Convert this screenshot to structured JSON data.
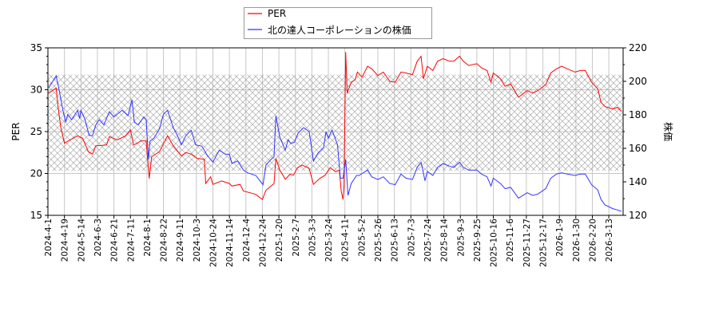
{
  "chart_data": {
    "type": "line",
    "ylabel_left": "PER",
    "ylabel_right": "株価",
    "ylim_left": [
      15,
      35
    ],
    "ylim_right": [
      120,
      220
    ],
    "yticks_left": [
      15,
      20,
      25,
      30,
      35
    ],
    "yticks_right": [
      120,
      140,
      160,
      180,
      200,
      220
    ],
    "grid": true,
    "legend_position": "top-center",
    "band_left": [
      20.3,
      31.8
    ],
    "xticks": [
      "2024-4-1",
      "2024-4-19",
      "2024-5-14",
      "2024-6-3",
      "2024-6-21",
      "2024-7-11",
      "2024-8-1",
      "2024-8-22",
      "2024-9-11",
      "2024-10-3",
      "2024-10-24",
      "2024-11-14",
      "2024-12-4",
      "2024-12-24",
      "2025-1-20",
      "2025-2-7",
      "2025-3-3",
      "2025-3-24",
      "2025-4-11",
      "2025-5-2",
      "2025-5-26",
      "2025-6-13",
      "2025-7-3",
      "2025-7-24",
      "2025-8-14",
      "2025-9-3",
      "2025-9-25",
      "2025-10-16",
      "2025-11-6",
      "2025-11-27",
      "2025-12-17",
      "2026-1-9",
      "2026-1-30",
      "2026-2-20",
      "2026-3-13"
    ],
    "series": [
      {
        "name": "PER",
        "axis": "left",
        "color": "#ff0000",
        "points": [
          [
            "2024-04-02",
            29.6
          ],
          [
            "2024-04-10",
            30.2
          ],
          [
            "2024-04-12",
            28.0
          ],
          [
            "2024-04-15",
            25.5
          ],
          [
            "2024-04-19",
            23.6
          ],
          [
            "2024-04-27",
            24.0
          ],
          [
            "2024-05-09",
            24.5
          ],
          [
            "2024-05-16",
            24.2
          ],
          [
            "2024-05-23",
            22.6
          ],
          [
            "2024-05-28",
            22.3
          ],
          [
            "2024-06-01",
            23.3
          ],
          [
            "2024-06-13",
            23.4
          ],
          [
            "2024-06-16",
            24.4
          ],
          [
            "2024-06-25",
            24.0
          ],
          [
            "2024-07-05",
            24.5
          ],
          [
            "2024-07-11",
            25.2
          ],
          [
            "2024-07-15",
            23.4
          ],
          [
            "2024-07-25",
            23.9
          ],
          [
            "2024-07-31",
            23.9
          ],
          [
            "2024-08-04",
            19.4
          ],
          [
            "2024-08-07",
            22.0
          ],
          [
            "2024-08-17",
            22.6
          ],
          [
            "2024-08-27",
            24.5
          ],
          [
            "2024-09-03",
            23.3
          ],
          [
            "2024-09-13",
            22.1
          ],
          [
            "2024-09-19",
            22.5
          ],
          [
            "2024-09-26",
            22.3
          ],
          [
            "2024-10-04",
            21.8
          ],
          [
            "2024-10-13",
            21.7
          ],
          [
            "2024-10-15",
            18.8
          ],
          [
            "2024-10-21",
            19.6
          ],
          [
            "2024-10-24",
            18.7
          ],
          [
            "2024-11-04",
            19.1
          ],
          [
            "2024-11-14",
            18.8
          ],
          [
            "2024-11-17",
            18.5
          ],
          [
            "2024-11-27",
            18.7
          ],
          [
            "2024-12-01",
            17.9
          ],
          [
            "2024-12-09",
            17.7
          ],
          [
            "2024-12-16",
            17.5
          ],
          [
            "2024-12-24",
            16.9
          ],
          [
            "2024-12-30",
            18.0
          ],
          [
            "2025-01-12",
            18.8
          ],
          [
            "2025-01-15",
            21.8
          ],
          [
            "2025-01-21",
            20.4
          ],
          [
            "2025-01-27",
            19.3
          ],
          [
            "2025-02-01",
            19.9
          ],
          [
            "2025-02-05",
            19.8
          ],
          [
            "2025-02-10",
            20.7
          ],
          [
            "2025-02-17",
            21.0
          ],
          [
            "2025-02-27",
            20.6
          ],
          [
            "2025-03-05",
            18.7
          ],
          [
            "2025-03-13",
            19.4
          ],
          [
            "2025-03-20",
            19.8
          ],
          [
            "2025-03-26",
            20.7
          ],
          [
            "2025-04-01",
            20.2
          ],
          [
            "2025-04-05",
            20.4
          ],
          [
            "2025-04-07",
            17.9
          ],
          [
            "2025-04-09",
            16.9
          ],
          [
            "2025-04-10",
            18.5
          ],
          [
            "2025-04-12",
            34.5
          ],
          [
            "2025-04-14",
            29.6
          ],
          [
            "2025-04-19",
            30.9
          ],
          [
            "2025-04-24",
            31.2
          ],
          [
            "2025-04-27",
            32.1
          ],
          [
            "2025-05-03",
            31.5
          ],
          [
            "2025-05-11",
            32.8
          ],
          [
            "2025-05-17",
            32.5
          ],
          [
            "2025-05-26",
            31.7
          ],
          [
            "2025-06-01",
            32.1
          ],
          [
            "2025-06-08",
            31.0
          ],
          [
            "2025-06-14",
            30.9
          ],
          [
            "2025-06-21",
            32.1
          ],
          [
            "2025-06-27",
            32.0
          ],
          [
            "2025-07-05",
            31.8
          ],
          [
            "2025-07-11",
            33.4
          ],
          [
            "2025-07-16",
            34.0
          ],
          [
            "2025-07-19",
            31.3
          ],
          [
            "2025-07-24",
            32.8
          ],
          [
            "2025-07-31",
            32.3
          ],
          [
            "2025-08-06",
            33.4
          ],
          [
            "2025-08-13",
            33.7
          ],
          [
            "2025-08-21",
            33.4
          ],
          [
            "2025-08-26",
            33.4
          ],
          [
            "2025-09-02",
            34.0
          ],
          [
            "2025-09-07",
            33.4
          ],
          [
            "2025-09-14",
            32.9
          ],
          [
            "2025-09-25",
            33.1
          ],
          [
            "2025-10-01",
            32.6
          ],
          [
            "2025-10-08",
            32.3
          ],
          [
            "2025-10-13",
            30.9
          ],
          [
            "2025-10-16",
            32.0
          ],
          [
            "2025-10-25",
            31.3
          ],
          [
            "2025-10-31",
            30.4
          ],
          [
            "2025-11-07",
            30.7
          ],
          [
            "2025-11-17",
            29.1
          ],
          [
            "2025-11-28",
            29.9
          ],
          [
            "2025-12-05",
            29.6
          ],
          [
            "2025-12-11",
            29.9
          ],
          [
            "2025-12-21",
            30.6
          ],
          [
            "2025-12-28",
            32.0
          ],
          [
            "2026-01-05",
            32.5
          ],
          [
            "2026-01-12",
            32.8
          ],
          [
            "2026-01-19",
            32.5
          ],
          [
            "2026-01-29",
            32.1
          ],
          [
            "2026-02-05",
            32.3
          ],
          [
            "2026-02-11",
            32.3
          ],
          [
            "2026-02-19",
            30.9
          ],
          [
            "2026-02-27",
            30.1
          ],
          [
            "2026-03-03",
            28.5
          ],
          [
            "2026-03-08",
            28.0
          ],
          [
            "2026-03-18",
            27.7
          ],
          [
            "2026-03-24",
            27.9
          ],
          [
            "2026-03-29",
            27.4
          ]
        ]
      },
      {
        "name": "北の達人コーポレーションの株価",
        "axis": "right",
        "color": "#3333ff",
        "points": [
          [
            "2024-04-02",
            196.2
          ],
          [
            "2024-04-10",
            203.3
          ],
          [
            "2024-04-13",
            195.4
          ],
          [
            "2024-04-17",
            183.5
          ],
          [
            "2024-04-21",
            175.6
          ],
          [
            "2024-04-24",
            180.3
          ],
          [
            "2024-04-30",
            177.1
          ],
          [
            "2024-05-09",
            182.7
          ],
          [
            "2024-05-12",
            177.9
          ],
          [
            "2024-05-14",
            182.7
          ],
          [
            "2024-05-19",
            177.1
          ],
          [
            "2024-05-24",
            167.6
          ],
          [
            "2024-05-28",
            167.6
          ],
          [
            "2024-06-01",
            174.0
          ],
          [
            "2024-06-05",
            177.1
          ],
          [
            "2024-06-10",
            174.0
          ],
          [
            "2024-06-16",
            181.9
          ],
          [
            "2024-06-21",
            178.7
          ],
          [
            "2024-07-01",
            182.7
          ],
          [
            "2024-07-08",
            179.5
          ],
          [
            "2024-07-13",
            189.0
          ],
          [
            "2024-07-16",
            175.6
          ],
          [
            "2024-07-21",
            174.0
          ],
          [
            "2024-07-28",
            178.7
          ],
          [
            "2024-07-31",
            177.1
          ],
          [
            "2024-08-03",
            153.3
          ],
          [
            "2024-08-05",
            164.4
          ],
          [
            "2024-08-10",
            166.0
          ],
          [
            "2024-08-17",
            171.6
          ],
          [
            "2024-08-22",
            180.3
          ],
          [
            "2024-08-27",
            182.7
          ],
          [
            "2024-09-03",
            172.4
          ],
          [
            "2024-09-08",
            167.6
          ],
          [
            "2024-09-13",
            162.1
          ],
          [
            "2024-09-19",
            167.6
          ],
          [
            "2024-09-26",
            170.8
          ],
          [
            "2024-10-02",
            162.1
          ],
          [
            "2024-10-10",
            161.3
          ],
          [
            "2024-10-17",
            155.7
          ],
          [
            "2024-10-24",
            151.7
          ],
          [
            "2024-11-01",
            158.9
          ],
          [
            "2024-11-09",
            156.5
          ],
          [
            "2024-11-14",
            156.5
          ],
          [
            "2024-11-17",
            151.0
          ],
          [
            "2024-11-24",
            152.5
          ],
          [
            "2024-12-01",
            147.0
          ],
          [
            "2024-12-06",
            145.4
          ],
          [
            "2024-12-16",
            143.8
          ],
          [
            "2024-12-21",
            140.6
          ],
          [
            "2024-12-25",
            138.3
          ],
          [
            "2024-12-30",
            150.2
          ],
          [
            "2025-01-09",
            154.1
          ],
          [
            "2025-01-12",
            154.9
          ],
          [
            "2025-01-15",
            179.5
          ],
          [
            "2025-01-21",
            166.8
          ],
          [
            "2025-01-27",
            158.9
          ],
          [
            "2025-01-30",
            165.2
          ],
          [
            "2025-02-02",
            162.9
          ],
          [
            "2025-02-06",
            163.6
          ],
          [
            "2025-02-11",
            169.2
          ],
          [
            "2025-02-19",
            172.4
          ],
          [
            "2025-02-27",
            170.0
          ],
          [
            "2025-03-05",
            152.5
          ],
          [
            "2025-03-11",
            157.3
          ],
          [
            "2025-03-18",
            160.5
          ],
          [
            "2025-03-21",
            170.0
          ],
          [
            "2025-03-24",
            166.0
          ],
          [
            "2025-03-28",
            171.0
          ],
          [
            "2025-04-03",
            162.1
          ],
          [
            "2025-04-06",
            142.2
          ],
          [
            "2025-04-09",
            142.2
          ],
          [
            "2025-04-12",
            153.3
          ],
          [
            "2025-04-15",
            131.9
          ],
          [
            "2025-04-19",
            139.0
          ],
          [
            "2025-04-26",
            143.8
          ],
          [
            "2025-04-29",
            143.8
          ],
          [
            "2025-05-11",
            147.0
          ],
          [
            "2025-05-17",
            143.0
          ],
          [
            "2025-05-26",
            141.4
          ],
          [
            "2025-06-01",
            143.0
          ],
          [
            "2025-06-08",
            139.0
          ],
          [
            "2025-06-14",
            138.3
          ],
          [
            "2025-06-21",
            144.6
          ],
          [
            "2025-06-27",
            142.2
          ],
          [
            "2025-07-05",
            141.4
          ],
          [
            "2025-07-11",
            148.6
          ],
          [
            "2025-07-16",
            151.7
          ],
          [
            "2025-07-21",
            140.6
          ],
          [
            "2025-07-24",
            146.2
          ],
          [
            "2025-07-31",
            143.8
          ],
          [
            "2025-08-06",
            148.6
          ],
          [
            "2025-08-13",
            150.9
          ],
          [
            "2025-08-21",
            149.4
          ],
          [
            "2025-08-26",
            148.6
          ],
          [
            "2025-09-02",
            151.7
          ],
          [
            "2025-09-07",
            148.6
          ],
          [
            "2025-09-14",
            147.0
          ],
          [
            "2025-09-25",
            147.0
          ],
          [
            "2025-10-01",
            144.6
          ],
          [
            "2025-10-08",
            143.0
          ],
          [
            "2025-10-13",
            137.5
          ],
          [
            "2025-10-16",
            142.2
          ],
          [
            "2025-10-25",
            139.0
          ],
          [
            "2025-10-31",
            135.9
          ],
          [
            "2025-11-07",
            136.7
          ],
          [
            "2025-11-17",
            130.3
          ],
          [
            "2025-11-28",
            133.5
          ],
          [
            "2025-12-05",
            131.9
          ],
          [
            "2025-12-11",
            132.7
          ],
          [
            "2025-12-21",
            135.9
          ],
          [
            "2025-12-28",
            142.2
          ],
          [
            "2026-01-05",
            144.6
          ],
          [
            "2026-01-12",
            145.4
          ],
          [
            "2026-01-19",
            144.6
          ],
          [
            "2026-01-29",
            143.8
          ],
          [
            "2026-02-05",
            144.6
          ],
          [
            "2026-02-11",
            144.6
          ],
          [
            "2026-02-19",
            138.3
          ],
          [
            "2026-02-27",
            135.1
          ],
          [
            "2026-03-03",
            129.5
          ],
          [
            "2026-03-08",
            126.3
          ],
          [
            "2026-03-18",
            124.0
          ],
          [
            "2026-03-24",
            123.2
          ],
          [
            "2026-03-29",
            122.4
          ]
        ]
      }
    ]
  }
}
